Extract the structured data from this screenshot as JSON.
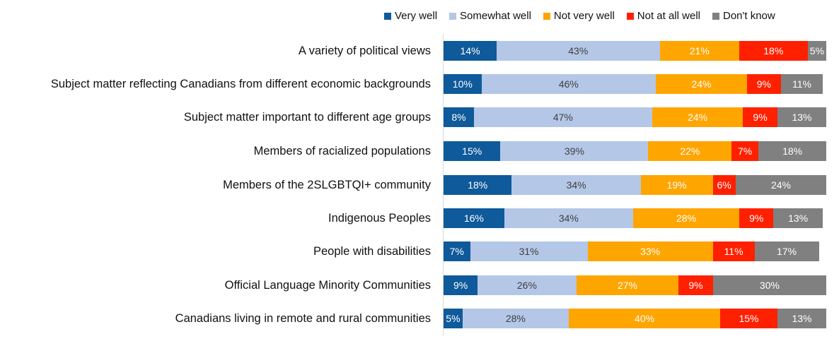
{
  "chart_data": {
    "type": "bar",
    "orientation": "horizontal",
    "stacked": true,
    "title": "",
    "xlabel": "",
    "ylabel": "",
    "xlim": [
      0,
      100
    ],
    "grid": false,
    "legend_position": "top-right",
    "categories": [
      "A variety of political views",
      "Subject matter reflecting Canadians from different economic backgrounds",
      "Subject matter important to different age groups",
      "Members of racialized populations",
      "Members of the 2SLGBTQI+ community",
      "Indigenous Peoples",
      "People with disabilities",
      "Official Language Minority Communities",
      "Canadians living in remote and rural communities"
    ],
    "series": [
      {
        "name": "Very well",
        "color": "#0f5a9a",
        "label_color": "#ffffff",
        "values": [
          14,
          10,
          8,
          15,
          18,
          16,
          7,
          9,
          5
        ]
      },
      {
        "name": "Somewhat well",
        "color": "#b4c7e7",
        "label_color": "#404040",
        "values": [
          43,
          46,
          47,
          39,
          34,
          34,
          31,
          26,
          28
        ]
      },
      {
        "name": "Not very well",
        "color": "#ffa500",
        "label_color": "#ffffff",
        "values": [
          21,
          24,
          24,
          22,
          19,
          28,
          33,
          27,
          40
        ]
      },
      {
        "name": "Not at all well",
        "color": "#ff2000",
        "label_color": "#ffffff",
        "values": [
          18,
          9,
          9,
          7,
          6,
          9,
          11,
          9,
          15
        ]
      },
      {
        "name": "Don't know",
        "color": "#808080",
        "label_color": "#ffffff",
        "values": [
          5,
          11,
          13,
          18,
          24,
          13,
          17,
          30,
          13
        ]
      }
    ]
  }
}
